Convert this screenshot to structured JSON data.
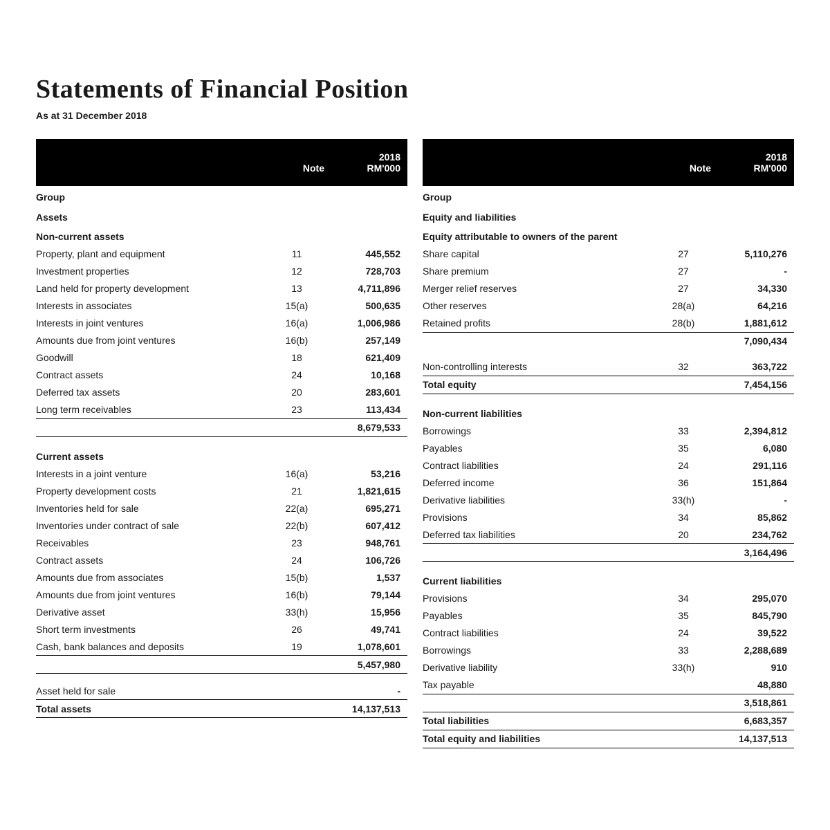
{
  "title": "Statements of Financial Position",
  "subtitle": "As at 31 December 2018",
  "columns": {
    "note": "Note",
    "year": "2018",
    "unit": "RM'000"
  },
  "left": {
    "rows": [
      {
        "kind": "section",
        "label": "Group",
        "first": true
      },
      {
        "kind": "section",
        "label": "Assets"
      },
      {
        "kind": "section",
        "label": "Non-current assets"
      },
      {
        "kind": "item",
        "label": "Property, plant and equipment",
        "note": "11",
        "val": "445,552"
      },
      {
        "kind": "item",
        "label": "Investment properties",
        "note": "12",
        "val": "728,703"
      },
      {
        "kind": "item",
        "label": "Land held for property development",
        "note": "13",
        "val": "4,711,896"
      },
      {
        "kind": "item",
        "label": "Interests in associates",
        "note": "15(a)",
        "val": "500,635"
      },
      {
        "kind": "item",
        "label": "Interests in joint ventures",
        "note": "16(a)",
        "val": "1,006,986"
      },
      {
        "kind": "item",
        "label": "Amounts due from joint ventures",
        "note": "16(b)",
        "val": "257,149"
      },
      {
        "kind": "item",
        "label": "Goodwill",
        "note": "18",
        "val": "621,409"
      },
      {
        "kind": "item",
        "label": "Contract assets",
        "note": "24",
        "val": "10,168"
      },
      {
        "kind": "item",
        "label": "Deferred tax assets",
        "note": "20",
        "val": "283,601"
      },
      {
        "kind": "item",
        "label": "Long term receivables",
        "note": "23",
        "val": "113,434",
        "lineBelow": true
      },
      {
        "kind": "subtotal",
        "val": "8,679,533",
        "lineBelow": true
      },
      {
        "kind": "spacer"
      },
      {
        "kind": "section",
        "label": "Current assets"
      },
      {
        "kind": "item",
        "label": "Interests in a joint venture",
        "note": "16(a)",
        "val": "53,216"
      },
      {
        "kind": "item",
        "label": "Property development costs",
        "note": "21",
        "val": "1,821,615"
      },
      {
        "kind": "item",
        "label": "Inventories held for sale",
        "note": "22(a)",
        "val": "695,271"
      },
      {
        "kind": "item",
        "label": "Inventories under contract of sale",
        "note": "22(b)",
        "val": "607,412"
      },
      {
        "kind": "item",
        "label": "Receivables",
        "note": "23",
        "val": "948,761"
      },
      {
        "kind": "item",
        "label": "Contract assets",
        "note": "24",
        "val": "106,726"
      },
      {
        "kind": "item",
        "label": "Amounts due from associates",
        "note": "15(b)",
        "val": "1,537"
      },
      {
        "kind": "item",
        "label": "Amounts due from joint ventures",
        "note": "16(b)",
        "val": "79,144"
      },
      {
        "kind": "item",
        "label": "Derivative asset",
        "note": "33(h)",
        "val": "15,956"
      },
      {
        "kind": "item",
        "label": "Short term investments",
        "note": "26",
        "val": "49,741"
      },
      {
        "kind": "item",
        "label": "Cash, bank balances and deposits",
        "note": "19",
        "val": "1,078,601",
        "lineBelow": true
      },
      {
        "kind": "subtotal",
        "val": "5,457,980",
        "lineBelow": true
      },
      {
        "kind": "spacer"
      },
      {
        "kind": "item",
        "label": "Asset held for sale",
        "val": "-",
        "lineBelow": true
      },
      {
        "kind": "total",
        "label": "Total assets",
        "val": "14,137,513",
        "lineBelow": true
      }
    ]
  },
  "right": {
    "rows": [
      {
        "kind": "section",
        "label": "Group",
        "first": true
      },
      {
        "kind": "section",
        "label": "Equity and liabilities"
      },
      {
        "kind": "section",
        "label": "Equity attributable to owners of the parent"
      },
      {
        "kind": "item",
        "label": "Share capital",
        "note": "27",
        "val": "5,110,276"
      },
      {
        "kind": "item",
        "label": "Share premium",
        "note": "27",
        "val": "-"
      },
      {
        "kind": "item",
        "label": "Merger relief reserves",
        "note": "27",
        "val": "34,330"
      },
      {
        "kind": "item",
        "label": "Other reserves",
        "note": "28(a)",
        "val": "64,216"
      },
      {
        "kind": "item",
        "label": "Retained profits",
        "note": "28(b)",
        "val": "1,881,612",
        "lineBelow": true
      },
      {
        "kind": "subtotal",
        "val": "7,090,434"
      },
      {
        "kind": "spacer"
      },
      {
        "kind": "item",
        "label": "Non-controlling interests",
        "note": "32",
        "val": "363,722",
        "lineBelow": true
      },
      {
        "kind": "total",
        "label": "Total equity",
        "val": "7,454,156",
        "lineBelow": true
      },
      {
        "kind": "spacer"
      },
      {
        "kind": "section",
        "label": "Non-current liabilities"
      },
      {
        "kind": "item",
        "label": "Borrowings",
        "note": "33",
        "val": "2,394,812"
      },
      {
        "kind": "item",
        "label": "Payables",
        "note": "35",
        "val": "6,080"
      },
      {
        "kind": "item",
        "label": "Contract liabilities",
        "note": "24",
        "val": "291,116"
      },
      {
        "kind": "item",
        "label": "Deferred income",
        "note": "36",
        "val": "151,864"
      },
      {
        "kind": "item",
        "label": "Derivative liabilities",
        "note": "33(h)",
        "val": "-"
      },
      {
        "kind": "item",
        "label": "Provisions",
        "note": "34",
        "val": "85,862"
      },
      {
        "kind": "item",
        "label": "Deferred tax liabilities",
        "note": "20",
        "val": "234,762",
        "lineBelow": true
      },
      {
        "kind": "subtotal",
        "val": "3,164,496",
        "lineBelow": true
      },
      {
        "kind": "spacer"
      },
      {
        "kind": "section",
        "label": "Current liabilities"
      },
      {
        "kind": "item",
        "label": "Provisions",
        "note": "34",
        "val": "295,070"
      },
      {
        "kind": "item",
        "label": "Payables",
        "note": "35",
        "val": "845,790"
      },
      {
        "kind": "item",
        "label": "Contract liabilities",
        "note": "24",
        "val": "39,522"
      },
      {
        "kind": "item",
        "label": "Borrowings",
        "note": "33",
        "val": "2,288,689"
      },
      {
        "kind": "item",
        "label": "Derivative liability",
        "note": "33(h)",
        "val": "910"
      },
      {
        "kind": "item",
        "label": "Tax payable",
        "val": "48,880",
        "lineBelow": true
      },
      {
        "kind": "subtotal",
        "val": "3,518,861",
        "lineBelow": true
      },
      {
        "kind": "total",
        "label": "Total liabilities",
        "val": "6,683,357",
        "lineBelow": true
      },
      {
        "kind": "total",
        "label": "Total equity and liabilities",
        "val": "14,137,513",
        "lineBelow": true
      }
    ]
  }
}
